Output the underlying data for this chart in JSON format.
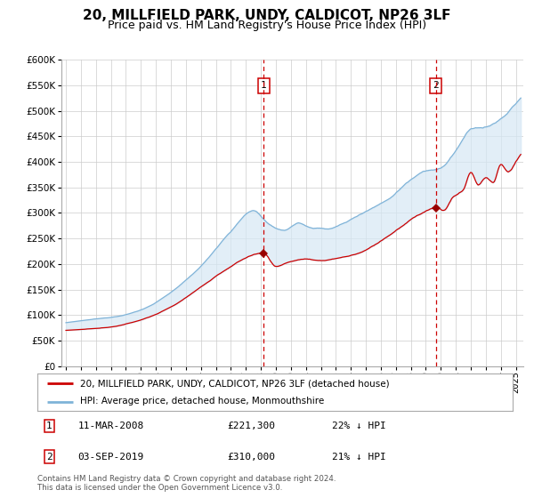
{
  "title": "20, MILLFIELD PARK, UNDY, CALDICOT, NP26 3LF",
  "subtitle": "Price paid vs. HM Land Registry's House Price Index (HPI)",
  "ylim": [
    0,
    600000
  ],
  "yticks": [
    0,
    50000,
    100000,
    150000,
    200000,
    250000,
    300000,
    350000,
    400000,
    450000,
    500000,
    550000,
    600000
  ],
  "xlim_start": 1994.7,
  "xlim_end": 2025.5,
  "hpi_color": "#7fb3d8",
  "hpi_fill_color": "#d6e8f5",
  "price_color": "#cc0000",
  "marker1_x": 2008.19,
  "marker1_y": 221300,
  "marker2_x": 2019.67,
  "marker2_y": 310000,
  "vline_color": "#cc0000",
  "legend_label1": "20, MILLFIELD PARK, UNDY, CALDICOT, NP26 3LF (detached house)",
  "legend_label2": "HPI: Average price, detached house, Monmouthshire",
  "table_row1": [
    "1",
    "11-MAR-2008",
    "£221,300",
    "22% ↓ HPI"
  ],
  "table_row2": [
    "2",
    "03-SEP-2019",
    "£310,000",
    "21% ↓ HPI"
  ],
  "footnote1": "Contains HM Land Registry data © Crown copyright and database right 2024.",
  "footnote2": "This data is licensed under the Open Government Licence v3.0.",
  "background_color": "#ffffff",
  "grid_color": "#cccccc",
  "title_fontsize": 11,
  "subtitle_fontsize": 9,
  "axis_fontsize": 7.5
}
